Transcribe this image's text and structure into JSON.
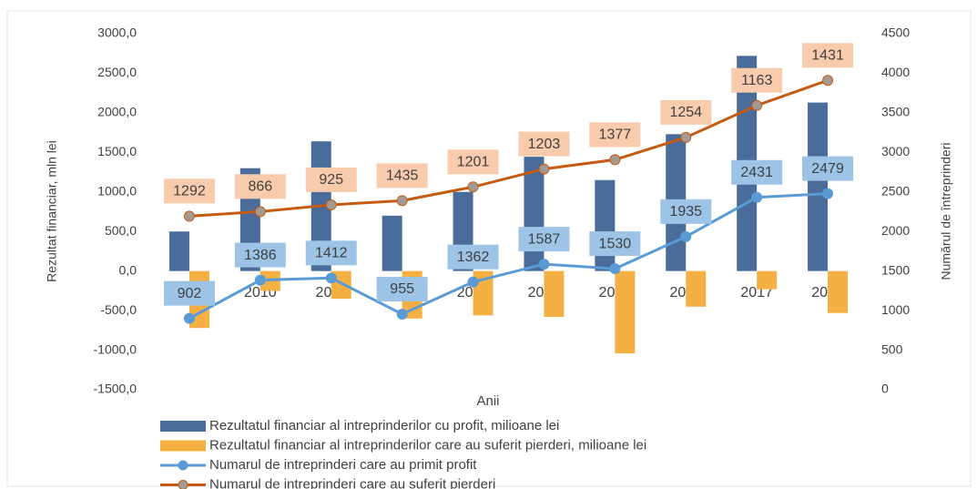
{
  "chart_data": {
    "type": "combo",
    "x_label": "Anii",
    "y_label": "Rezultat financiar, mln lei",
    "y2_label": "Numărul de întreprinderi",
    "categories": [
      "2009",
      "2010",
      "2011",
      "2012",
      "2013",
      "2014",
      "2015",
      "2016",
      "2017",
      "2018"
    ],
    "ylim": [
      -1500,
      3000
    ],
    "yticks": [
      {
        "value": 3000,
        "label": "3000,0"
      },
      {
        "value": 2500,
        "label": "2500,0"
      },
      {
        "value": 2000,
        "label": "2000,0"
      },
      {
        "value": 1500,
        "label": "1500,0"
      },
      {
        "value": 1000,
        "label": "1000,0"
      },
      {
        "value": 500,
        "label": "500,0"
      },
      {
        "value": 0,
        "label": "0,0"
      },
      {
        "value": -500,
        "label": "-500,0"
      },
      {
        "value": -1000,
        "label": "-1000,0"
      },
      {
        "value": -1500,
        "label": "-1500,0"
      }
    ],
    "y2lim": [
      0,
      4500
    ],
    "y2ticks": [
      4500,
      4000,
      3500,
      3000,
      2500,
      2000,
      1500,
      1000,
      500,
      0
    ],
    "series": [
      {
        "name": "Rezultatul financiar al intreprinderilor cu profit, milioane lei",
        "type": "bar",
        "color": "#4a6c9b",
        "values": [
          500,
          1300,
          1640,
          700,
          1000,
          1445,
          1150,
          1730,
          2720,
          2130
        ]
      },
      {
        "name": "Rezultatul financiar al intreprinderilor care au suferit pierderi, milioane lei",
        "type": "bar",
        "color": "#f4b043",
        "values": [
          -720,
          -250,
          -350,
          -600,
          -560,
          -580,
          -1040,
          -450,
          -230,
          -530
        ]
      },
      {
        "name": "Numarul de intreprinderi care au primit profit",
        "type": "line",
        "axis": "y2",
        "color": "#5b9bd5",
        "marker_color": "#5b9bd5",
        "label_color": "#9dc3e6",
        "values": [
          902,
          1386,
          1412,
          955,
          1362,
          1587,
          1530,
          1935,
          2431,
          2479
        ]
      },
      {
        "name": "Numarul de intreprinderi care au suferit pierderi",
        "type": "line",
        "axis": "y2",
        "stacked": true,
        "color": "#c55a11",
        "marker_color": "#a39a92",
        "label_color": "#f8cbad",
        "values": [
          1292,
          866,
          925,
          1435,
          1201,
          1203,
          1377,
          1254,
          1163,
          1431
        ]
      }
    ]
  }
}
